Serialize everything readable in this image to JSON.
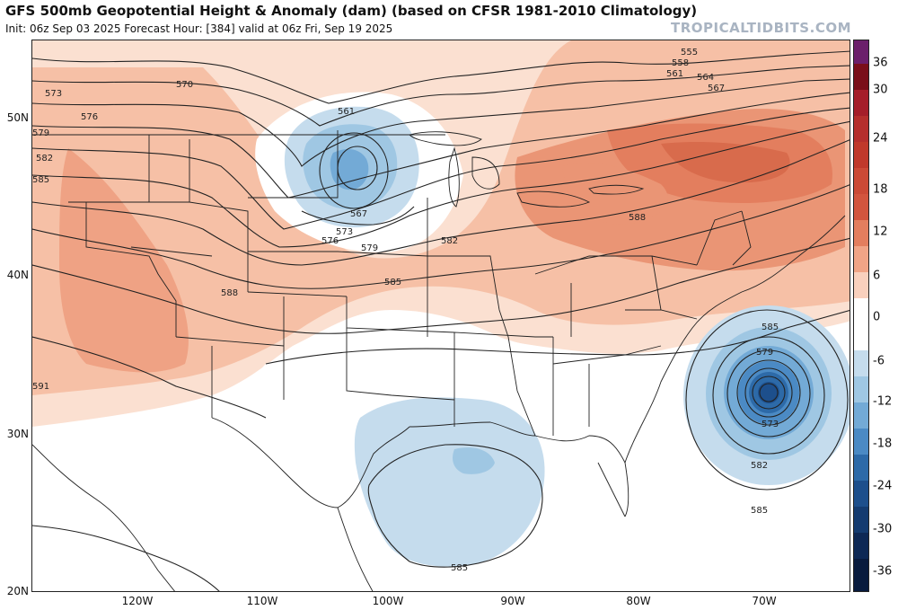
{
  "header": {
    "title": "GFS 500mb Geopotential Height & Anomaly (dam) (based on CFSR 1981-2010 Climatology)",
    "subtitle": "Init: 06z Sep 03 2025   Forecast Hour: [384]   valid at 06z Fri, Sep 19 2025",
    "brand": "TROPICALTIDBITS.COM"
  },
  "map": {
    "lat_labels": [
      "50N",
      "40N",
      "30N",
      "20N"
    ],
    "lon_labels": [
      "120W",
      "110W",
      "100W",
      "90W",
      "80W",
      "70W"
    ],
    "contour_labels": [
      "555",
      "558",
      "561",
      "564",
      "567",
      "570",
      "573",
      "576",
      "579",
      "582",
      "585",
      "588",
      "591",
      "561",
      "567",
      "573",
      "576",
      "579",
      "585",
      "582",
      "588",
      "585",
      "579",
      "573",
      "582",
      "585",
      "585"
    ]
  },
  "colorbar": {
    "labels": [
      "36",
      "30",
      "24",
      "18",
      "12",
      "6",
      "0",
      "-6",
      "-12",
      "-18",
      "-24",
      "-30",
      "-36"
    ],
    "colors": [
      "#6b1f6b",
      "#7a0f1a",
      "#a51e2a",
      "#c0392b",
      "#d2553e",
      "#e37e5e",
      "#f0a486",
      "#f9d0bd",
      "#ffffff",
      "#ffffff",
      "#c5dced",
      "#9fc7e3",
      "#73aad6",
      "#4b8ac4",
      "#2d6aa8",
      "#1d4f8c",
      "#143b70",
      "#0d2855",
      "#081a3d"
    ]
  }
}
